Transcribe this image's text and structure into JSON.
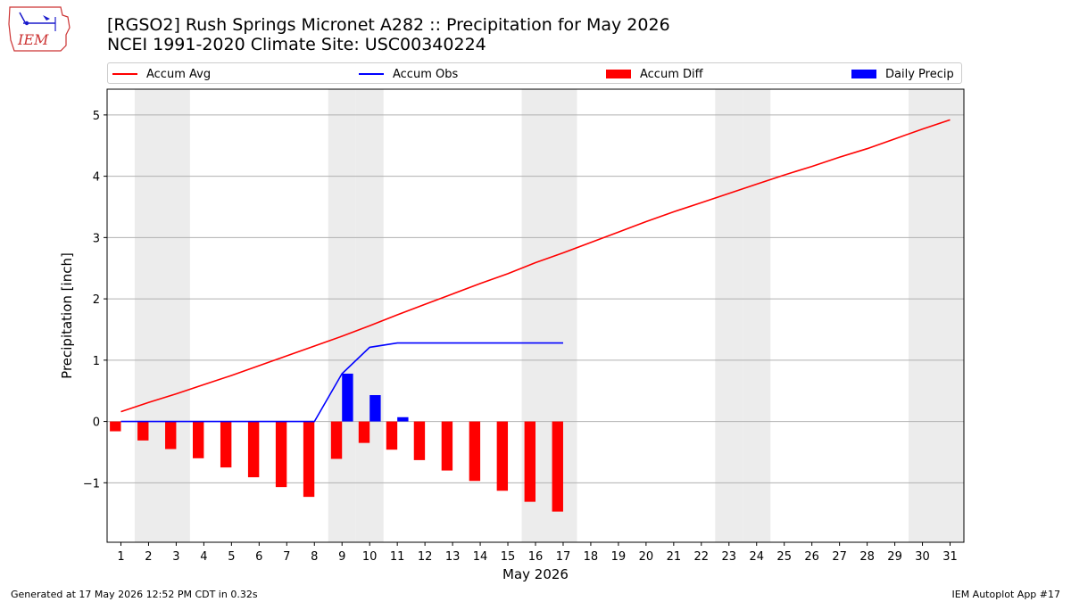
{
  "header": {
    "title_line1": "[RGSO2] Rush Springs Micronet A282 :: Precipitation for May 2026",
    "title_line2": "NCEI 1991-2020 Climate Site: USC00340224"
  },
  "logo": {
    "text": "IEM"
  },
  "legend": {
    "position": "top, spanning plot width",
    "items": [
      {
        "label": "Accum Avg",
        "kind": "line",
        "color": "#ff0000"
      },
      {
        "label": "Accum Obs",
        "kind": "line",
        "color": "#0000ff"
      },
      {
        "label": "Accum Diff",
        "kind": "bar",
        "color": "#ff0000"
      },
      {
        "label": "Daily Precip",
        "kind": "bar",
        "color": "#0000ff"
      }
    ]
  },
  "colors": {
    "avg": "#ff0000",
    "obs": "#0000ff",
    "weekend_shade": "#ececec",
    "grid": "#b0b0b0"
  },
  "chart_data": {
    "type": "line",
    "xlabel": "May 2026",
    "ylabel": "Precipitation [inch]",
    "xlim": [
      0.5,
      31.5
    ],
    "ylim": [
      -1.97,
      5.42
    ],
    "x_ticks": [
      1,
      2,
      3,
      4,
      5,
      6,
      7,
      8,
      9,
      10,
      11,
      12,
      13,
      14,
      15,
      16,
      17,
      18,
      19,
      20,
      21,
      22,
      23,
      24,
      25,
      26,
      27,
      28,
      29,
      30,
      31
    ],
    "y_ticks": [
      -1,
      0,
      1,
      2,
      3,
      4,
      5
    ],
    "y_tick_labels": [
      "−1",
      "0",
      "1",
      "2",
      "3",
      "4",
      "5"
    ],
    "grid": "horizontal",
    "shaded_days": [
      2,
      3,
      9,
      10,
      16,
      17,
      23,
      24,
      30,
      31
    ],
    "series": [
      {
        "name": "Accum Avg",
        "kind": "line",
        "color": "#ff0000",
        "x": [
          1,
          2,
          3,
          4,
          5,
          6,
          7,
          8,
          9,
          10,
          11,
          12,
          13,
          14,
          15,
          16,
          17,
          18,
          19,
          20,
          21,
          22,
          23,
          24,
          25,
          26,
          27,
          28,
          29,
          30,
          31
        ],
        "values": [
          0.16,
          0.31,
          0.45,
          0.6,
          0.75,
          0.91,
          1.07,
          1.23,
          1.39,
          1.56,
          1.74,
          1.91,
          2.08,
          2.25,
          2.41,
          2.59,
          2.75,
          2.92,
          3.09,
          3.26,
          3.42,
          3.57,
          3.72,
          3.87,
          4.02,
          4.16,
          4.31,
          4.45,
          4.61,
          4.77,
          4.92
        ]
      },
      {
        "name": "Accum Obs",
        "kind": "line",
        "color": "#0000ff",
        "x": [
          1,
          2,
          3,
          4,
          5,
          6,
          7,
          8,
          9,
          10,
          11,
          12,
          13,
          14,
          15,
          16,
          17
        ],
        "values": [
          0,
          0,
          0,
          0,
          0,
          0,
          0,
          0,
          0.78,
          1.21,
          1.28,
          1.28,
          1.28,
          1.28,
          1.28,
          1.28,
          1.28
        ]
      },
      {
        "name": "Accum Diff",
        "kind": "bar",
        "color": "#ff0000",
        "x": [
          1,
          2,
          3,
          4,
          5,
          6,
          7,
          8,
          9,
          10,
          11,
          12,
          13,
          14,
          15,
          16,
          17
        ],
        "values": [
          -0.16,
          -0.31,
          -0.45,
          -0.6,
          -0.75,
          -0.91,
          -1.07,
          -1.23,
          -0.61,
          -0.35,
          -0.46,
          -0.63,
          -0.8,
          -0.97,
          -1.13,
          -1.31,
          -1.47
        ]
      },
      {
        "name": "Daily Precip",
        "kind": "bar",
        "color": "#0000ff",
        "x": [
          1,
          2,
          3,
          4,
          5,
          6,
          7,
          8,
          9,
          10,
          11,
          12,
          13,
          14,
          15,
          16,
          17
        ],
        "values": [
          0,
          0,
          0,
          0,
          0,
          0,
          0,
          0,
          0.78,
          0.43,
          0.07,
          0,
          0,
          0,
          0,
          0,
          0
        ]
      }
    ]
  },
  "footer": {
    "left": "Generated at 17 May 2026 12:52 PM CDT in 0.32s",
    "right": "IEM Autoplot App #17"
  }
}
